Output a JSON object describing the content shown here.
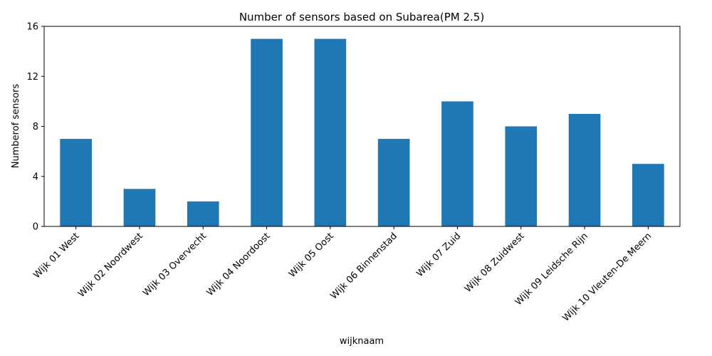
{
  "chart_data": {
    "type": "bar",
    "title": "Number of sensors based on Subarea(PM 2.5)",
    "xlabel": "wijknaam",
    "ylabel": "Numberof sensors",
    "categories": [
      "Wijk 01 West",
      "Wijk 02 Noordwest",
      "Wijk 03 Overvecht",
      "Wijk 04 Noordoost",
      "Wijk 05 Oost",
      "Wijk 06 Binnenstad",
      "Wijk 07 Zuid",
      "Wijk 08 Zuidwest",
      "Wijk 09 Leidsche Rijn",
      "Wijk 10 Vleuten-De Meern"
    ],
    "values": [
      7,
      3,
      2,
      15,
      15,
      7,
      10,
      8,
      9,
      5
    ],
    "ylim": [
      0,
      16
    ],
    "yticks": [
      0,
      4,
      8,
      12,
      16
    ],
    "grid": false,
    "legend": "none",
    "bar_color": "#1f77b4"
  }
}
